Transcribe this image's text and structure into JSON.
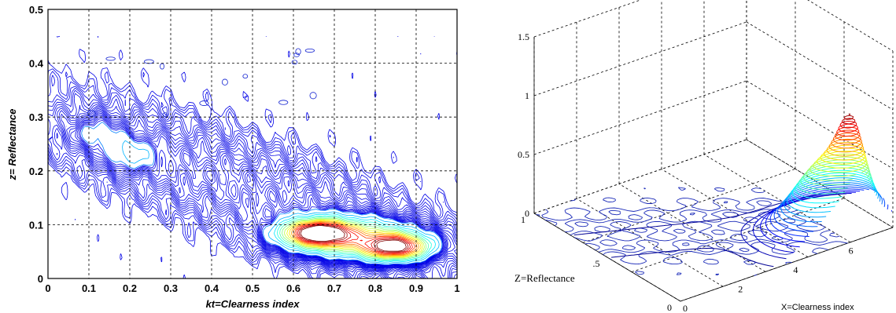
{
  "chart_data": [
    {
      "type": "contour",
      "view": "2d",
      "xlabel": "kt=Clearness index",
      "ylabel": "z= Reflectance",
      "xlim": [
        0,
        1
      ],
      "ylim": [
        0,
        0.5
      ],
      "xticks": [
        "0",
        "0.1",
        "0.2",
        "0.3",
        "0.4",
        "0.5",
        "0.6",
        "0.7",
        "0.8",
        "0.9",
        "1"
      ],
      "yticks": [
        "0",
        "0.1",
        "0.2",
        "0.3",
        "0.4",
        "0.5"
      ],
      "grid": true,
      "colormap": "jet",
      "density_peaks": [
        {
          "x": 0.66,
          "y": 0.085,
          "level": 1.0
        },
        {
          "x": 0.85,
          "y": 0.058,
          "level": 0.95
        },
        {
          "x": 0.2,
          "y": 0.23,
          "level": 0.18
        },
        {
          "x": 0.12,
          "y": 0.27,
          "level": 0.15
        }
      ]
    },
    {
      "type": "surface-contour",
      "view": "3d",
      "xlabel": "X=Clearness index",
      "ylabel": "Z=Reflectance",
      "zticks": [
        "0",
        "0.5",
        "1",
        "1.5"
      ],
      "zlim": [
        0,
        1.5
      ],
      "xticks": [
        "0",
        "2",
        "4",
        "6"
      ],
      "yticks": [
        "0",
        ".5",
        "1"
      ],
      "grid": true,
      "colormap": "jet",
      "peak": {
        "x": 0.85,
        "y": 0.06,
        "z": 1.0
      }
    }
  ],
  "colors": {
    "contour_low": "#1020d0",
    "contour_high": "#a00000",
    "grid": "#000000"
  }
}
